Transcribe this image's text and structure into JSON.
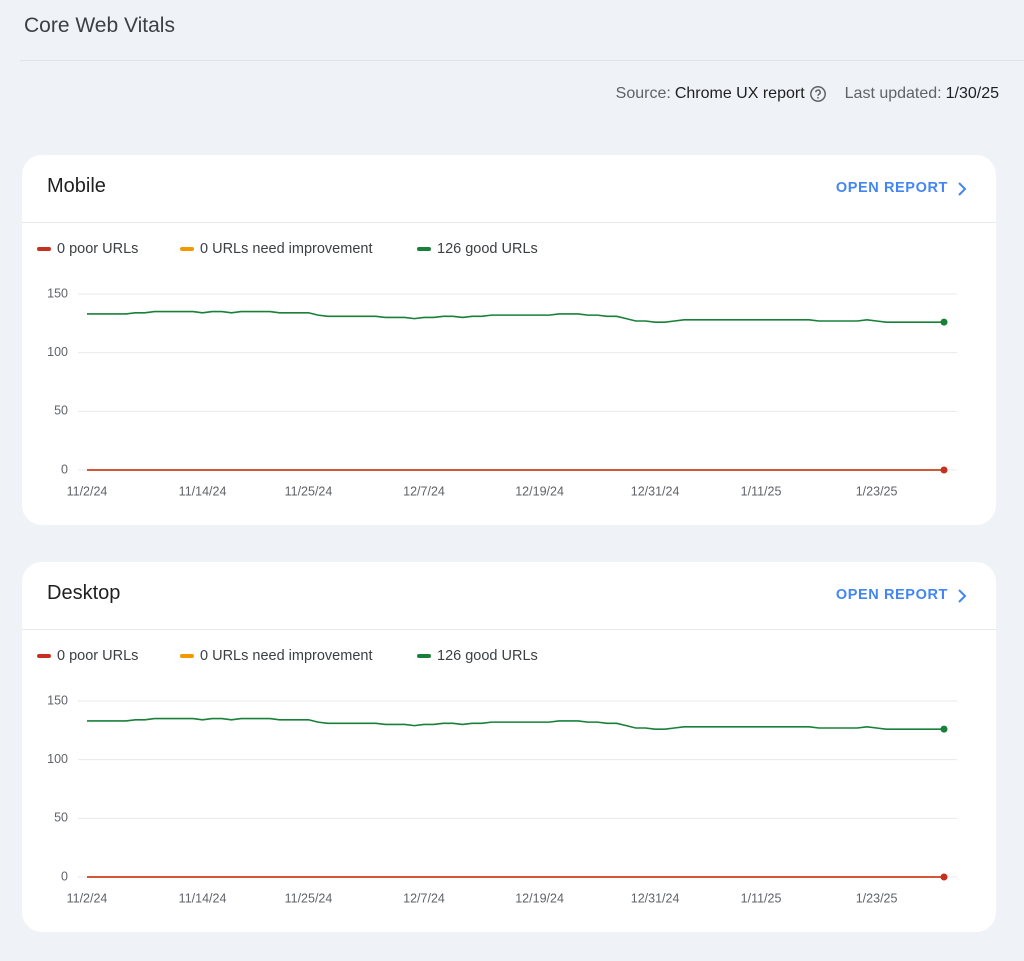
{
  "header": {
    "title": "Core Web Vitals"
  },
  "source": {
    "label": "Source:",
    "value": "Chrome UX report",
    "updated_label": "Last updated:",
    "updated_value": "1/30/25"
  },
  "chart_data": [
    {
      "type": "line",
      "title": "Mobile",
      "link": "OPEN REPORT",
      "categories": [
        "11/2/24",
        null,
        null,
        null,
        null,
        null,
        null,
        null,
        null,
        null,
        null,
        null,
        "11/14/24",
        null,
        null,
        null,
        null,
        null,
        null,
        null,
        null,
        null,
        null,
        "11/25/24",
        null,
        null,
        null,
        null,
        null,
        null,
        null,
        null,
        null,
        null,
        null,
        "12/7/24",
        null,
        null,
        null,
        null,
        null,
        null,
        null,
        null,
        null,
        null,
        null,
        "12/19/24",
        null,
        null,
        null,
        null,
        null,
        null,
        null,
        null,
        null,
        null,
        null,
        "12/31/24",
        null,
        null,
        null,
        null,
        null,
        null,
        null,
        null,
        null,
        null,
        "1/11/25",
        null,
        null,
        null,
        null,
        null,
        null,
        null,
        null,
        null,
        null,
        null,
        "1/23/25",
        null,
        null,
        null,
        null,
        null,
        null,
        null
      ],
      "ylim": [
        0,
        150
      ],
      "yticks": [
        0,
        50,
        100,
        150
      ],
      "grid": true,
      "series": [
        {
          "name": "0 poor URLs",
          "color": "#c5301f",
          "values": [
            0,
            0,
            0,
            0,
            0,
            0,
            0,
            0,
            0,
            0,
            0,
            0,
            0,
            0,
            0,
            0,
            0,
            0,
            0,
            0,
            0,
            0,
            0,
            0,
            0,
            0,
            0,
            0,
            0,
            0,
            0,
            0,
            0,
            0,
            0,
            0,
            0,
            0,
            0,
            0,
            0,
            0,
            0,
            0,
            0,
            0,
            0,
            0,
            0,
            0,
            0,
            0,
            0,
            0,
            0,
            0,
            0,
            0,
            0,
            0,
            0,
            0,
            0,
            0,
            0,
            0,
            0,
            0,
            0,
            0,
            0,
            0,
            0,
            0,
            0,
            0,
            0,
            0,
            0,
            0,
            0,
            0,
            0,
            0,
            0,
            0,
            0,
            0,
            0,
            0
          ]
        },
        {
          "name": "0 URLs need improvement",
          "color": "#f29900",
          "values": [
            0,
            0,
            0,
            0,
            0,
            0,
            0,
            0,
            0,
            0,
            0,
            0,
            0,
            0,
            0,
            0,
            0,
            0,
            0,
            0,
            0,
            0,
            0,
            0,
            0,
            0,
            0,
            0,
            0,
            0,
            0,
            0,
            0,
            0,
            0,
            0,
            0,
            0,
            0,
            0,
            0,
            0,
            0,
            0,
            0,
            0,
            0,
            0,
            0,
            0,
            0,
            0,
            0,
            0,
            0,
            0,
            0,
            0,
            0,
            0,
            0,
            0,
            0,
            0,
            0,
            0,
            0,
            0,
            0,
            0,
            0,
            0,
            0,
            0,
            0,
            0,
            0,
            0,
            0,
            0,
            0,
            0,
            0,
            0,
            0,
            0,
            0,
            0,
            0,
            0
          ]
        },
        {
          "name": "126 good URLs",
          "color": "#188038",
          "values": [
            133,
            133,
            133,
            133,
            133,
            134,
            134,
            135,
            135,
            135,
            135,
            135,
            134,
            135,
            135,
            134,
            135,
            135,
            135,
            135,
            134,
            134,
            134,
            134,
            132,
            131,
            131,
            131,
            131,
            131,
            131,
            130,
            130,
            130,
            129,
            130,
            130,
            131,
            131,
            130,
            131,
            131,
            132,
            132,
            132,
            132,
            132,
            132,
            132,
            133,
            133,
            133,
            132,
            132,
            131,
            131,
            129,
            127,
            127,
            126,
            126,
            127,
            128,
            128,
            128,
            128,
            128,
            128,
            128,
            128,
            128,
            128,
            128,
            128,
            128,
            128,
            127,
            127,
            127,
            127,
            127,
            128,
            127,
            126,
            126,
            126,
            126,
            126,
            126,
            126
          ]
        }
      ]
    },
    {
      "type": "line",
      "title": "Desktop",
      "link": "OPEN REPORT",
      "categories": [
        "11/2/24",
        null,
        null,
        null,
        null,
        null,
        null,
        null,
        null,
        null,
        null,
        null,
        "11/14/24",
        null,
        null,
        null,
        null,
        null,
        null,
        null,
        null,
        null,
        null,
        "11/25/24",
        null,
        null,
        null,
        null,
        null,
        null,
        null,
        null,
        null,
        null,
        null,
        "12/7/24",
        null,
        null,
        null,
        null,
        null,
        null,
        null,
        null,
        null,
        null,
        null,
        "12/19/24",
        null,
        null,
        null,
        null,
        null,
        null,
        null,
        null,
        null,
        null,
        null,
        "12/31/24",
        null,
        null,
        null,
        null,
        null,
        null,
        null,
        null,
        null,
        null,
        "1/11/25",
        null,
        null,
        null,
        null,
        null,
        null,
        null,
        null,
        null,
        null,
        null,
        "1/23/25",
        null,
        null,
        null,
        null,
        null,
        null,
        null
      ],
      "ylim": [
        0,
        150
      ],
      "yticks": [
        0,
        50,
        100,
        150
      ],
      "grid": true,
      "series": [
        {
          "name": "0 poor URLs",
          "color": "#c5301f",
          "values": [
            0,
            0,
            0,
            0,
            0,
            0,
            0,
            0,
            0,
            0,
            0,
            0,
            0,
            0,
            0,
            0,
            0,
            0,
            0,
            0,
            0,
            0,
            0,
            0,
            0,
            0,
            0,
            0,
            0,
            0,
            0,
            0,
            0,
            0,
            0,
            0,
            0,
            0,
            0,
            0,
            0,
            0,
            0,
            0,
            0,
            0,
            0,
            0,
            0,
            0,
            0,
            0,
            0,
            0,
            0,
            0,
            0,
            0,
            0,
            0,
            0,
            0,
            0,
            0,
            0,
            0,
            0,
            0,
            0,
            0,
            0,
            0,
            0,
            0,
            0,
            0,
            0,
            0,
            0,
            0,
            0,
            0,
            0,
            0,
            0,
            0,
            0,
            0,
            0,
            0
          ]
        },
        {
          "name": "0 URLs need improvement",
          "color": "#f29900",
          "values": [
            0,
            0,
            0,
            0,
            0,
            0,
            0,
            0,
            0,
            0,
            0,
            0,
            0,
            0,
            0,
            0,
            0,
            0,
            0,
            0,
            0,
            0,
            0,
            0,
            0,
            0,
            0,
            0,
            0,
            0,
            0,
            0,
            0,
            0,
            0,
            0,
            0,
            0,
            0,
            0,
            0,
            0,
            0,
            0,
            0,
            0,
            0,
            0,
            0,
            0,
            0,
            0,
            0,
            0,
            0,
            0,
            0,
            0,
            0,
            0,
            0,
            0,
            0,
            0,
            0,
            0,
            0,
            0,
            0,
            0,
            0,
            0,
            0,
            0,
            0,
            0,
            0,
            0,
            0,
            0,
            0,
            0,
            0,
            0,
            0,
            0,
            0,
            0,
            0,
            0
          ]
        },
        {
          "name": "126 good URLs",
          "color": "#188038",
          "values": [
            133,
            133,
            133,
            133,
            133,
            134,
            134,
            135,
            135,
            135,
            135,
            135,
            134,
            135,
            135,
            134,
            135,
            135,
            135,
            135,
            134,
            134,
            134,
            134,
            132,
            131,
            131,
            131,
            131,
            131,
            131,
            130,
            130,
            130,
            129,
            130,
            130,
            131,
            131,
            130,
            131,
            131,
            132,
            132,
            132,
            132,
            132,
            132,
            132,
            133,
            133,
            133,
            132,
            132,
            131,
            131,
            129,
            127,
            127,
            126,
            126,
            127,
            128,
            128,
            128,
            128,
            128,
            128,
            128,
            128,
            128,
            128,
            128,
            128,
            128,
            128,
            127,
            127,
            127,
            127,
            127,
            128,
            127,
            126,
            126,
            126,
            126,
            126,
            126,
            126
          ]
        }
      ]
    }
  ]
}
